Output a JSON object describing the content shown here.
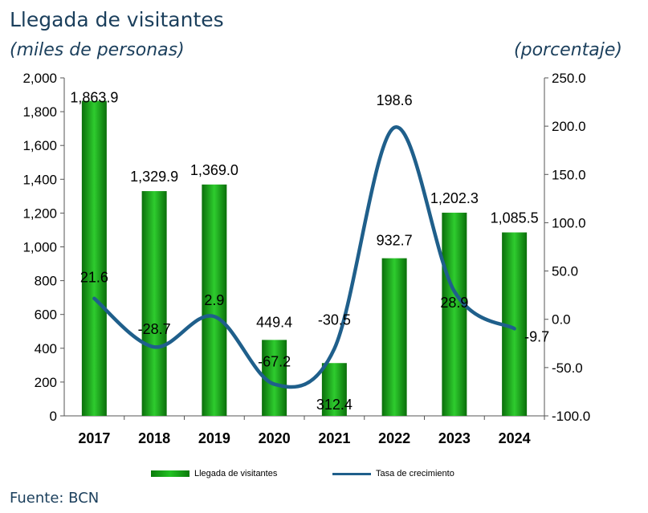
{
  "header": {
    "title": "Llegada de visitantes",
    "subtitle_left": "(miles de personas)",
    "subtitle_right": "(porcentaje)"
  },
  "footer": {
    "source": "Fuente: BCN"
  },
  "legend": {
    "bar_label": "Llegada de visitantes",
    "line_label": "Tasa de crecimiento"
  },
  "colors": {
    "bar": "#16a316",
    "bar_dark": "#0a6e0a",
    "line": "#1f5f8b",
    "title": "#1b3f5c"
  },
  "chart_data": {
    "type": "bar",
    "categories": [
      "2017",
      "2018",
      "2019",
      "2020",
      "2021",
      "2022",
      "2023",
      "2024"
    ],
    "series": [
      {
        "name": "Llegada de visitantes",
        "type": "bar",
        "axis": "left",
        "values": [
          1863.9,
          1329.9,
          1369.0,
          449.4,
          312.4,
          932.7,
          1202.3,
          1085.5
        ],
        "labels": [
          "1,863.9",
          "1,329.9",
          "1,369.0",
          "449.4",
          "312.4",
          "932.7",
          "1,202.3",
          "1,085.5"
        ]
      },
      {
        "name": "Tasa de crecimiento",
        "type": "line",
        "axis": "right",
        "values": [
          21.6,
          -28.7,
          2.9,
          -67.2,
          -30.5,
          198.6,
          28.9,
          -9.7
        ],
        "labels": [
          "21.6",
          "-28.7",
          "2.9",
          "-67.2",
          "-30.5",
          "198.6",
          "28.9",
          "-9.7"
        ]
      }
    ],
    "y_left": {
      "range": [
        0,
        2000
      ],
      "ticks": [
        "0",
        "200",
        "400",
        "600",
        "800",
        "1,000",
        "1,200",
        "1,400",
        "1,600",
        "1,800",
        "2,000"
      ]
    },
    "y_right": {
      "range": [
        -100,
        250
      ],
      "ticks": [
        "-100.0",
        "-50.0",
        "0.0",
        "50.0",
        "100.0",
        "150.0",
        "200.0",
        "250.0"
      ]
    },
    "grid": false,
    "legend_position": "bottom"
  }
}
